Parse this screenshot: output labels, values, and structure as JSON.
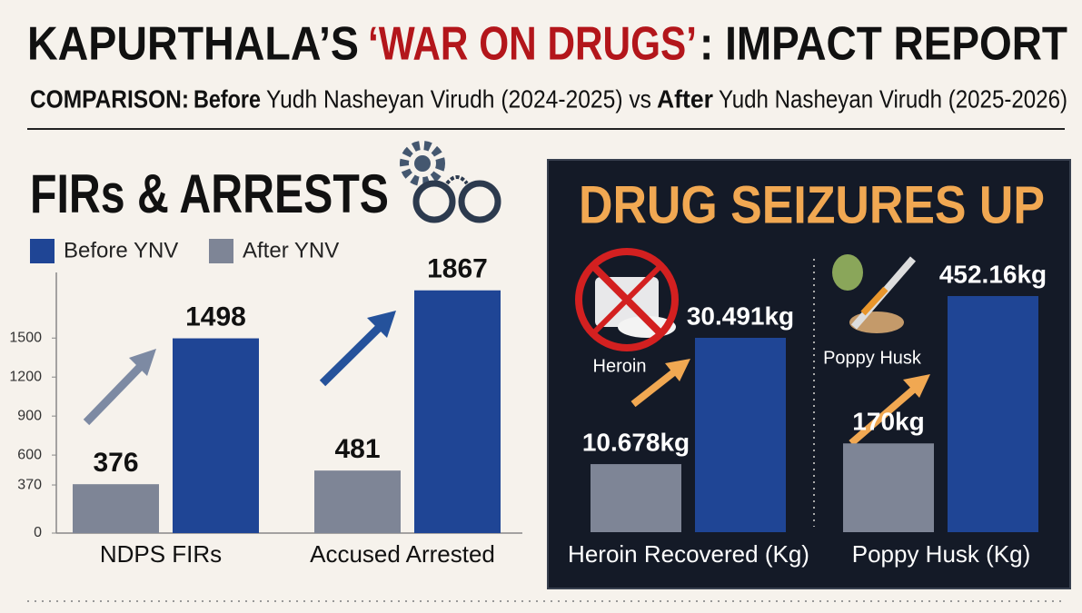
{
  "header": {
    "title_parts": [
      "KAPURTHALA’S",
      "‘WAR ON DRUGS’",
      ": IMPACT REPORT"
    ],
    "subtitle_parts": [
      "COMPARISON:",
      "Before",
      "Yudh Nasheyan Virudh (2024-2025) vs",
      "After",
      "Yudh Nasheyan Virudh (2025-2026)"
    ]
  },
  "chart_data": [
    {
      "type": "bar",
      "title": "FIRs & ARRESTS",
      "categories": [
        "NDPS FIRs",
        "Accused Arrested"
      ],
      "series": [
        {
          "name": "Before YNV",
          "color": "#1f4595",
          "values": [
            1498,
            1867
          ]
        },
        {
          "name": "After YNV",
          "color": "#7e8596",
          "values": [
            376,
            481
          ]
        }
      ],
      "ylim": [
        0,
        1900
      ],
      "yticks": [
        0,
        370,
        600,
        900,
        1200,
        1500
      ]
    },
    {
      "type": "bar",
      "title": "DRUG SEIZURES UP",
      "icon_label": "Heroin",
      "categories": [
        "Heroin Recovered (Kg)"
      ],
      "series": [
        {
          "color": "#7e8596",
          "values": [
            10.678
          ],
          "value_labels": [
            "10.678kg"
          ]
        },
        {
          "color": "#1f4595",
          "values": [
            30.491
          ],
          "value_labels": [
            "30.491kg"
          ]
        }
      ]
    },
    {
      "type": "bar",
      "icon_label": "Poppy Husk",
      "categories": [
        "Poppy Husk (Kg)"
      ],
      "series": [
        {
          "color": "#7e8596",
          "values": [
            170
          ],
          "value_labels": [
            "170kg"
          ]
        },
        {
          "color": "#1f4595",
          "values": [
            452.16
          ],
          "value_labels": [
            "452.16kg"
          ]
        }
      ]
    }
  ]
}
